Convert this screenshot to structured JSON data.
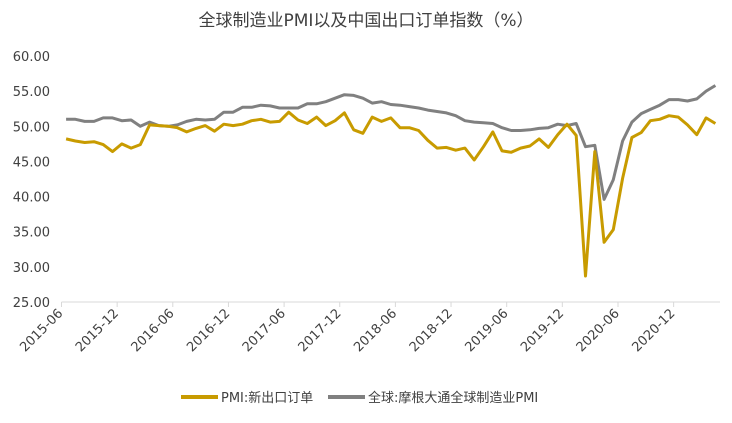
{
  "chart_data": {
    "type": "line",
    "title": "全球制造业PMI以及中国出口订单指数（%）",
    "xlabel": "",
    "ylabel": "",
    "ylim": [
      25,
      60
    ],
    "yticks": [
      "25.00",
      "30.00",
      "35.00",
      "40.00",
      "45.00",
      "50.00",
      "55.00",
      "60.00"
    ],
    "ytick_values": [
      25,
      30,
      35,
      40,
      45,
      50,
      55,
      60
    ],
    "start": [
      2015,
      6
    ],
    "xtick_every": 6,
    "xticks": [
      "2015-06",
      "2015-12",
      "2016-06",
      "2016-12",
      "2017-06",
      "2017-12",
      "2018-06",
      "2018-12",
      "2019-06",
      "2019-12",
      "2020-06",
      "2020-12"
    ],
    "legend_position": "bottom",
    "grid": false,
    "series": [
      {
        "name": "PMI:新出口订单",
        "color": "#C89B00",
        "values": [
          48.2,
          47.9,
          47.7,
          47.8,
          47.4,
          46.4,
          47.5,
          46.9,
          47.4,
          50.2,
          50.1,
          50.0,
          49.8,
          49.2,
          49.7,
          50.1,
          49.3,
          50.3,
          50.1,
          50.3,
          50.8,
          51.0,
          50.6,
          50.7,
          52.0,
          50.9,
          50.4,
          51.3,
          50.1,
          50.8,
          51.9,
          49.5,
          49.0,
          51.3,
          50.7,
          51.2,
          49.8,
          49.8,
          49.4,
          48.0,
          46.9,
          47.0,
          46.6,
          46.9,
          45.2,
          47.1,
          49.2,
          46.5,
          46.3,
          46.9,
          47.2,
          48.2,
          47.0,
          48.8,
          50.3,
          48.7,
          28.7,
          46.4,
          33.5,
          35.3,
          42.6,
          48.4,
          49.1,
          50.8,
          51.0,
          51.5,
          51.3,
          50.2,
          48.8,
          51.2,
          50.4
        ]
      },
      {
        "name": "全球:摩根大通全球制造业PMI",
        "color": "#808080",
        "values": [
          51.0,
          51.0,
          50.7,
          50.7,
          51.2,
          51.2,
          50.8,
          50.9,
          50.0,
          50.6,
          50.1,
          50.0,
          50.2,
          50.7,
          51.0,
          50.9,
          51.0,
          52.0,
          52.0,
          52.7,
          52.7,
          53.0,
          52.9,
          52.6,
          52.6,
          52.6,
          53.2,
          53.2,
          53.5,
          54.0,
          54.5,
          54.4,
          54.0,
          53.3,
          53.5,
          53.1,
          53.0,
          52.8,
          52.6,
          52.3,
          52.1,
          51.9,
          51.5,
          50.8,
          50.6,
          50.5,
          50.4,
          49.8,
          49.4,
          49.4,
          49.5,
          49.7,
          49.8,
          50.3,
          50.1,
          50.4,
          47.1,
          47.3,
          39.6,
          42.4,
          47.9,
          50.6,
          51.8,
          52.4,
          53.0,
          53.8,
          53.8,
          53.6,
          53.9,
          55.0,
          55.8
        ]
      }
    ]
  }
}
